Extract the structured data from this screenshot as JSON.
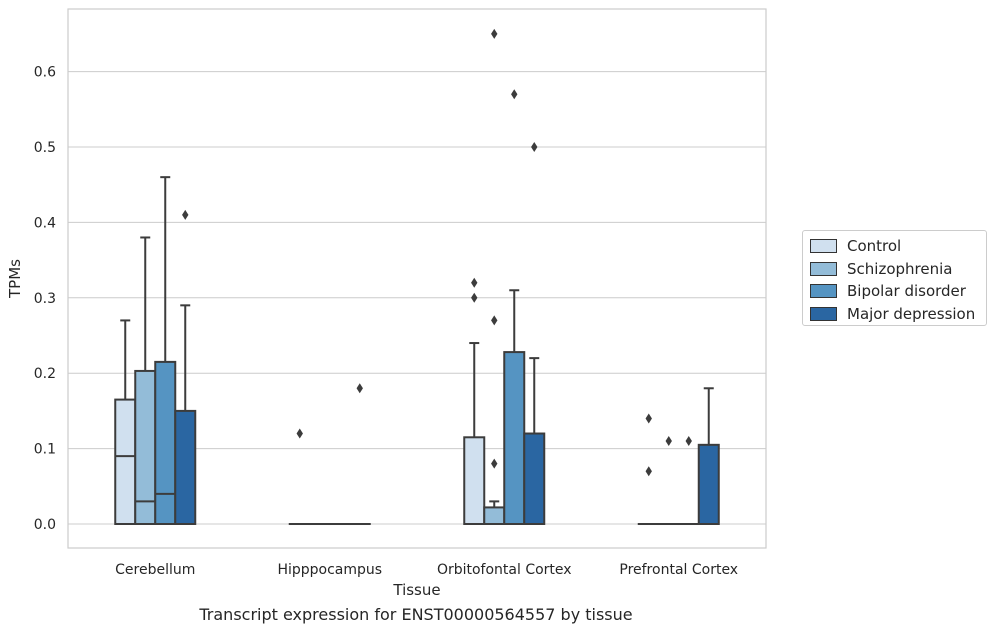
{
  "chart_data": {
    "type": "box",
    "xlabel": "Tissue",
    "ylabel": "TPMs",
    "ylim": [
      -0.032,
      0.685
    ],
    "yticks": [
      "0.0",
      "0.1",
      "0.2",
      "0.3",
      "0.4",
      "0.5",
      "0.6"
    ],
    "categories": [
      "Cerebellum",
      "Hipppocampus",
      "Orbitofontal Cortex",
      "Prefrontal Cortex"
    ],
    "grid": true,
    "legend_position": "right",
    "series": [
      {
        "name": "Control",
        "color": "#d0e0ef",
        "boxes": [
          {
            "q1": 0.0,
            "median": 0.09,
            "q3": 0.165,
            "whisker_low": 0.0,
            "whisker_high": 0.27,
            "outliers": []
          },
          {
            "q1": 0.0,
            "median": 0.0,
            "q3": 0.0,
            "whisker_low": 0.0,
            "whisker_high": 0.0,
            "outliers": [
              0.12
            ]
          },
          {
            "q1": 0.0,
            "median": 0.0,
            "q3": 0.115,
            "whisker_low": 0.0,
            "whisker_high": 0.24,
            "outliers": [
              0.32,
              0.3
            ]
          },
          {
            "q1": 0.0,
            "median": 0.0,
            "q3": 0.0,
            "whisker_low": 0.0,
            "whisker_high": 0.0,
            "outliers": [
              0.14,
              0.07
            ]
          }
        ]
      },
      {
        "name": "Schizophrenia",
        "color": "#93bcd8",
        "boxes": [
          {
            "q1": 0.0,
            "median": 0.03,
            "q3": 0.203,
            "whisker_low": 0.0,
            "whisker_high": 0.38,
            "outliers": []
          },
          {
            "q1": 0.0,
            "median": 0.0,
            "q3": 0.0,
            "whisker_low": 0.0,
            "whisker_high": 0.0,
            "outliers": []
          },
          {
            "q1": 0.0,
            "median": 0.0,
            "q3": 0.022,
            "whisker_low": 0.0,
            "whisker_high": 0.03,
            "outliers": [
              0.27,
              0.08,
              0.65
            ]
          },
          {
            "q1": 0.0,
            "median": 0.0,
            "q3": 0.0,
            "whisker_low": 0.0,
            "whisker_high": 0.0,
            "outliers": [
              0.11
            ]
          }
        ]
      },
      {
        "name": "Bipolar disorder",
        "color": "#5594c2",
        "boxes": [
          {
            "q1": 0.0,
            "median": 0.04,
            "q3": 0.215,
            "whisker_low": 0.0,
            "whisker_high": 0.46,
            "outliers": []
          },
          {
            "q1": 0.0,
            "median": 0.0,
            "q3": 0.0,
            "whisker_low": 0.0,
            "whisker_high": 0.0,
            "outliers": []
          },
          {
            "q1": 0.0,
            "median": 0.0,
            "q3": 0.228,
            "whisker_low": 0.0,
            "whisker_high": 0.31,
            "outliers": [
              0.57
            ]
          },
          {
            "q1": 0.0,
            "median": 0.0,
            "q3": 0.0,
            "whisker_low": 0.0,
            "whisker_high": 0.0,
            "outliers": [
              0.11
            ]
          }
        ]
      },
      {
        "name": "Major depression",
        "color": "#2a66a2",
        "boxes": [
          {
            "q1": 0.0,
            "median": 0.0,
            "q3": 0.15,
            "whisker_low": 0.0,
            "whisker_high": 0.29,
            "outliers": [
              0.41
            ]
          },
          {
            "q1": 0.0,
            "median": 0.0,
            "q3": 0.0,
            "whisker_low": 0.0,
            "whisker_high": 0.0,
            "outliers": [
              0.18
            ]
          },
          {
            "q1": 0.0,
            "median": 0.0,
            "q3": 0.12,
            "whisker_low": 0.0,
            "whisker_high": 0.22,
            "outliers": [
              0.5
            ]
          },
          {
            "q1": 0.0,
            "median": 0.0,
            "q3": 0.105,
            "whisker_low": 0.0,
            "whisker_high": 0.18,
            "outliers": []
          }
        ]
      }
    ]
  },
  "caption": "Transcript expression for ENST00000564557 by tissue"
}
